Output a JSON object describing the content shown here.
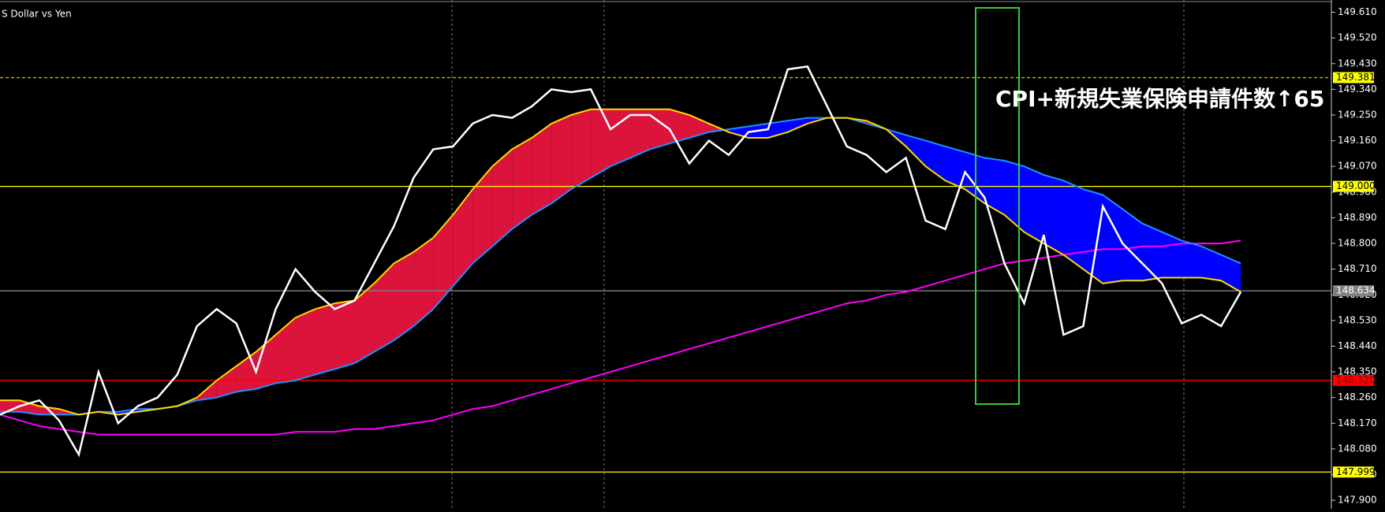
{
  "chart_data": {
    "type": "line",
    "title": "S Dollar vs Yen",
    "annotation": "CPI+新規失業保険申請件数↑65",
    "x": [
      0,
      1,
      2,
      3,
      4,
      5,
      6,
      7,
      8,
      9,
      10,
      11,
      12,
      13,
      14,
      15,
      16,
      17,
      18,
      19,
      20,
      21,
      22,
      23,
      24,
      25,
      26,
      27,
      28,
      29,
      30,
      31,
      32,
      33,
      34,
      35,
      36,
      37,
      38,
      39,
      40,
      41,
      42,
      43,
      44,
      45,
      46,
      47,
      48,
      49,
      50,
      51,
      52,
      53,
      54,
      55,
      56,
      57,
      58,
      59,
      60,
      61,
      62,
      63
    ],
    "xlim": [
      0,
      67.6
    ],
    "ylim": [
      147.87,
      149.653
    ],
    "yticks": [
      {
        "value": 149.61,
        "label": "149.610"
      },
      {
        "value": 149.52,
        "label": "149.520"
      },
      {
        "value": 149.43,
        "label": "149.430"
      },
      {
        "value": 149.34,
        "label": "149.340"
      },
      {
        "value": 149.25,
        "label": "149.250"
      },
      {
        "value": 149.16,
        "label": "149.160"
      },
      {
        "value": 149.07,
        "label": "149.070"
      },
      {
        "value": 148.98,
        "label": "148.980"
      },
      {
        "value": 148.89,
        "label": "148.890"
      },
      {
        "value": 148.8,
        "label": "148.800"
      },
      {
        "value": 148.71,
        "label": "148.710"
      },
      {
        "value": 148.62,
        "label": "148.620"
      },
      {
        "value": 148.53,
        "label": "148.530"
      },
      {
        "value": 148.44,
        "label": "148.440"
      },
      {
        "value": 148.35,
        "label": "148.350"
      },
      {
        "value": 148.26,
        "label": "148.260"
      },
      {
        "value": 148.17,
        "label": "148.170"
      },
      {
        "value": 148.08,
        "label": "148.080"
      },
      {
        "value": 147.99,
        "label": "147.990"
      },
      {
        "value": 147.9,
        "label": "147.900"
      }
    ],
    "series": [
      {
        "color": "#ffffff",
        "values": [
          148.2,
          148.23,
          148.25,
          148.18,
          148.06,
          148.35,
          148.17,
          148.23,
          148.26,
          148.34,
          148.51,
          148.57,
          148.52,
          148.35,
          148.57,
          148.71,
          148.63,
          148.57,
          148.6,
          148.73,
          148.86,
          149.03,
          149.13,
          149.14,
          149.22,
          149.25,
          149.24,
          149.28,
          149.34,
          149.33,
          149.34,
          149.2,
          149.25,
          149.25,
          149.2,
          149.08,
          149.16,
          149.11,
          149.19,
          149.2,
          149.41,
          149.42,
          149.28,
          149.14,
          149.11,
          149.05,
          149.1,
          148.88,
          148.85,
          149.05,
          148.96,
          148.73,
          148.59,
          148.83,
          148.48,
          148.51,
          148.93,
          148.8,
          148.73,
          148.66,
          148.52,
          148.55,
          148.51,
          148.63
        ]
      },
      {
        "color": "#ffd700",
        "values": [
          148.25,
          148.25,
          148.23,
          148.22,
          148.2,
          148.21,
          148.2,
          148.21,
          148.22,
          148.23,
          148.26,
          148.32,
          148.37,
          148.42,
          148.48,
          148.54,
          148.57,
          148.59,
          148.6,
          148.66,
          148.73,
          148.77,
          148.82,
          148.9,
          148.99,
          149.07,
          149.13,
          149.17,
          149.22,
          149.25,
          149.27,
          149.27,
          149.27,
          149.27,
          149.27,
          149.25,
          149.22,
          149.19,
          149.17,
          149.17,
          149.19,
          149.22,
          149.24,
          149.24,
          149.23,
          149.2,
          149.14,
          149.07,
          149.02,
          148.99,
          148.94,
          148.9,
          148.84,
          148.8,
          148.76,
          148.71,
          148.66,
          148.67,
          148.67,
          148.68,
          148.68,
          148.68,
          148.67,
          148.63
        ]
      },
      {
        "color": "#1e90ff",
        "values": [
          148.21,
          148.21,
          148.2,
          148.2,
          148.2,
          148.21,
          148.21,
          148.22,
          148.22,
          148.23,
          148.25,
          148.26,
          148.28,
          148.29,
          148.31,
          148.32,
          148.34,
          148.36,
          148.38,
          148.42,
          148.46,
          148.51,
          148.57,
          148.65,
          148.73,
          148.79,
          148.85,
          148.9,
          148.94,
          148.99,
          149.03,
          149.07,
          149.1,
          149.13,
          149.15,
          149.17,
          149.19,
          149.2,
          149.21,
          149.22,
          149.23,
          149.24,
          149.24,
          149.24,
          149.22,
          149.2,
          149.18,
          149.16,
          149.14,
          149.12,
          149.1,
          149.09,
          149.07,
          149.04,
          149.02,
          148.99,
          148.97,
          148.92,
          148.87,
          148.84,
          148.81,
          148.79,
          148.76,
          148.73
        ]
      },
      {
        "color": "#ff00ff",
        "values": [
          148.2,
          148.18,
          148.16,
          148.15,
          148.14,
          148.13,
          148.13,
          148.13,
          148.13,
          148.13,
          148.13,
          148.13,
          148.13,
          148.13,
          148.13,
          148.14,
          148.14,
          148.14,
          148.15,
          148.15,
          148.16,
          148.17,
          148.18,
          148.2,
          148.22,
          148.23,
          148.25,
          148.27,
          148.29,
          148.31,
          148.33,
          148.35,
          148.37,
          148.39,
          148.41,
          148.43,
          148.45,
          148.47,
          148.49,
          148.51,
          148.53,
          148.55,
          148.57,
          148.59,
          148.6,
          148.62,
          148.63,
          148.65,
          148.67,
          148.69,
          148.71,
          148.73,
          148.74,
          148.75,
          148.76,
          148.77,
          148.78,
          148.78,
          148.79,
          148.79,
          148.8,
          148.8,
          148.8,
          148.81
        ]
      }
    ],
    "cloud_colors": {
      "above": "#dc143c",
      "below": "#0000ff"
    },
    "levels": [
      {
        "value": 149.381,
        "label": "149.381",
        "color": "#daa520",
        "dashed": true,
        "background": "#ffff00",
        "text_color": "#000000"
      },
      {
        "value": 149,
        "label": "149.000",
        "color": "#ffff00",
        "dashed": false,
        "background": "#ffff00",
        "text_color": "#000000"
      },
      {
        "value": 148.634,
        "label": "148.634",
        "color": "#808080",
        "dashed": false,
        "background": "#808080",
        "text_color": "#ffffff"
      },
      {
        "value": 148.32,
        "label": "148.320",
        "color": "#ff0000",
        "dashed": false,
        "background": "#ff0000",
        "text_color": "#800000"
      },
      {
        "value": 147.999,
        "label": "147.999",
        "color": "#ffff00",
        "dashed": false,
        "background": "#ffff00",
        "text_color": "#000000"
      }
    ]
  }
}
